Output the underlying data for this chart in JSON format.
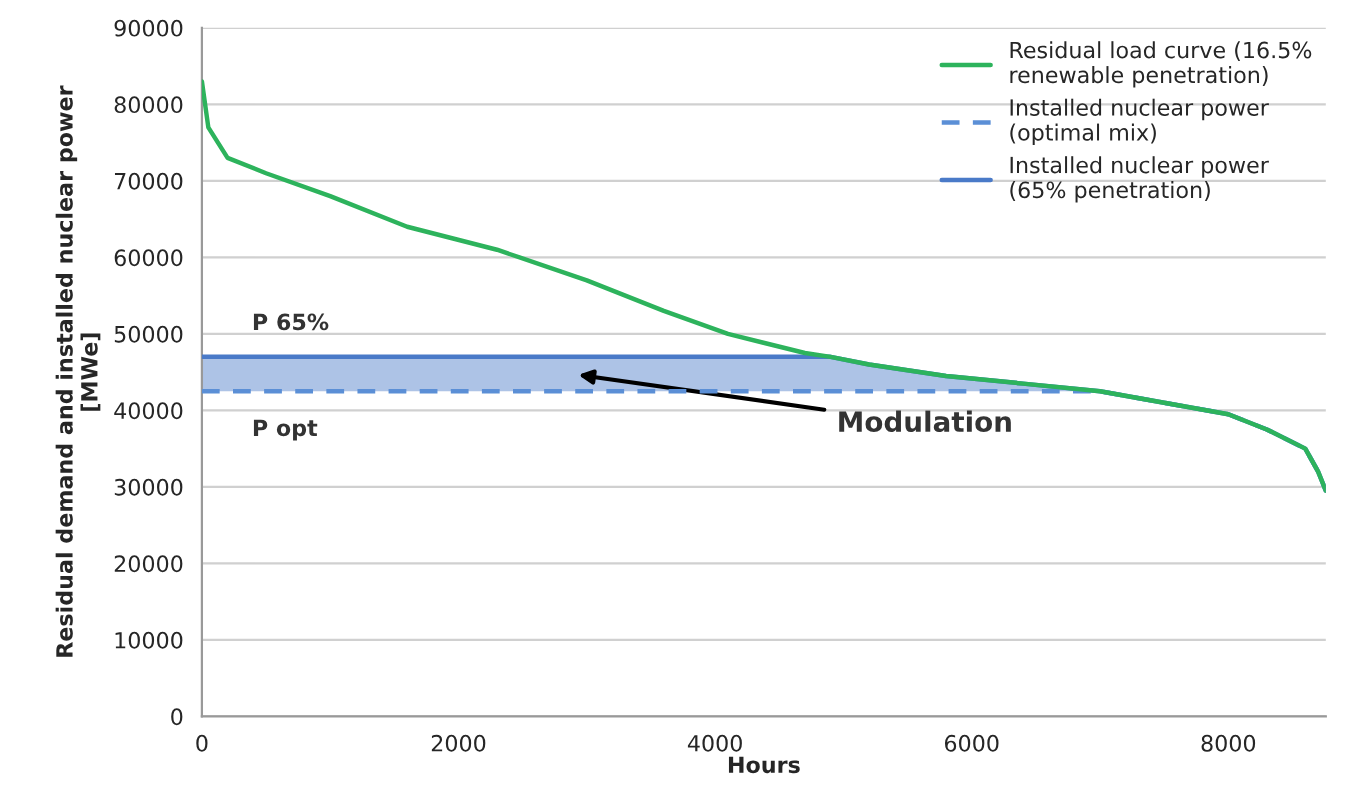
{
  "chart_data": {
    "type": "line",
    "xlabel": "Hours",
    "ylabel": "Residual demand and installed nuclear power\n[MWe]",
    "x": [
      0,
      50,
      200,
      500,
      1000,
      1600,
      2300,
      3000,
      3600,
      4100,
      4700,
      4900,
      5200,
      5800,
      6400,
      7000,
      7500,
      8000,
      8300,
      8600,
      8700,
      8760
    ],
    "series": [
      {
        "name": "Residual load curve (16.5%\nrenewable penetration)",
        "color": "#2db35c",
        "line_style": "solid",
        "values": [
          83000,
          77000,
          73000,
          71000,
          68000,
          64000,
          61000,
          57000,
          53000,
          50000,
          47500,
          47000,
          46000,
          44500,
          43500,
          42500,
          41000,
          39500,
          37500,
          35000,
          32000,
          29500
        ]
      },
      {
        "name": "Installed nuclear power\n(optimal mix)",
        "color": "#5b8fd6",
        "line_style": "dashed",
        "values": [
          42500,
          42500,
          42500,
          42500,
          42500,
          42500,
          42500,
          42500,
          42500,
          42500,
          42500,
          42500,
          42500,
          42500,
          42500,
          42500,
          41000,
          39500,
          37500,
          35000,
          32000,
          29500
        ]
      },
      {
        "name": "Installed nuclear power\n(65% penetration)",
        "color": "#4a7ac8",
        "line_style": "solid",
        "values": [
          47000,
          47000,
          47000,
          47000,
          47000,
          47000,
          47000,
          47000,
          47000,
          47000,
          47000,
          47000,
          46000,
          44500,
          43500,
          42500,
          41000,
          39500,
          37500,
          35000,
          32000,
          29500
        ],
        "lower": [
          42500,
          42500,
          42500,
          42500,
          42500,
          42500,
          42500,
          42500,
          42500,
          42500,
          42500,
          42500,
          42500,
          42500,
          42500,
          42500,
          41000,
          39500,
          37500,
          35000,
          32000,
          29500
        ],
        "upper": [
          47000,
          47000,
          47000,
          47000,
          47000,
          47000,
          47000,
          47000,
          47000,
          47000,
          47000,
          47000,
          46000,
          44500,
          43500,
          42500,
          41000,
          39500,
          37500,
          35000,
          32000,
          29500
        ]
      }
    ],
    "annotations": [
      "P 65%",
      "P opt",
      "Modulation"
    ],
    "xlim": [
      0,
      8760
    ],
    "xticks": [
      0,
      2000,
      4000,
      6000,
      8000
    ],
    "ylim": [
      0,
      90000
    ],
    "yticks": [
      0,
      10000,
      20000,
      30000,
      40000,
      50000,
      60000,
      70000,
      80000,
      90000
    ],
    "grid": "y",
    "legend": "top right",
    "marker": "none"
  }
}
